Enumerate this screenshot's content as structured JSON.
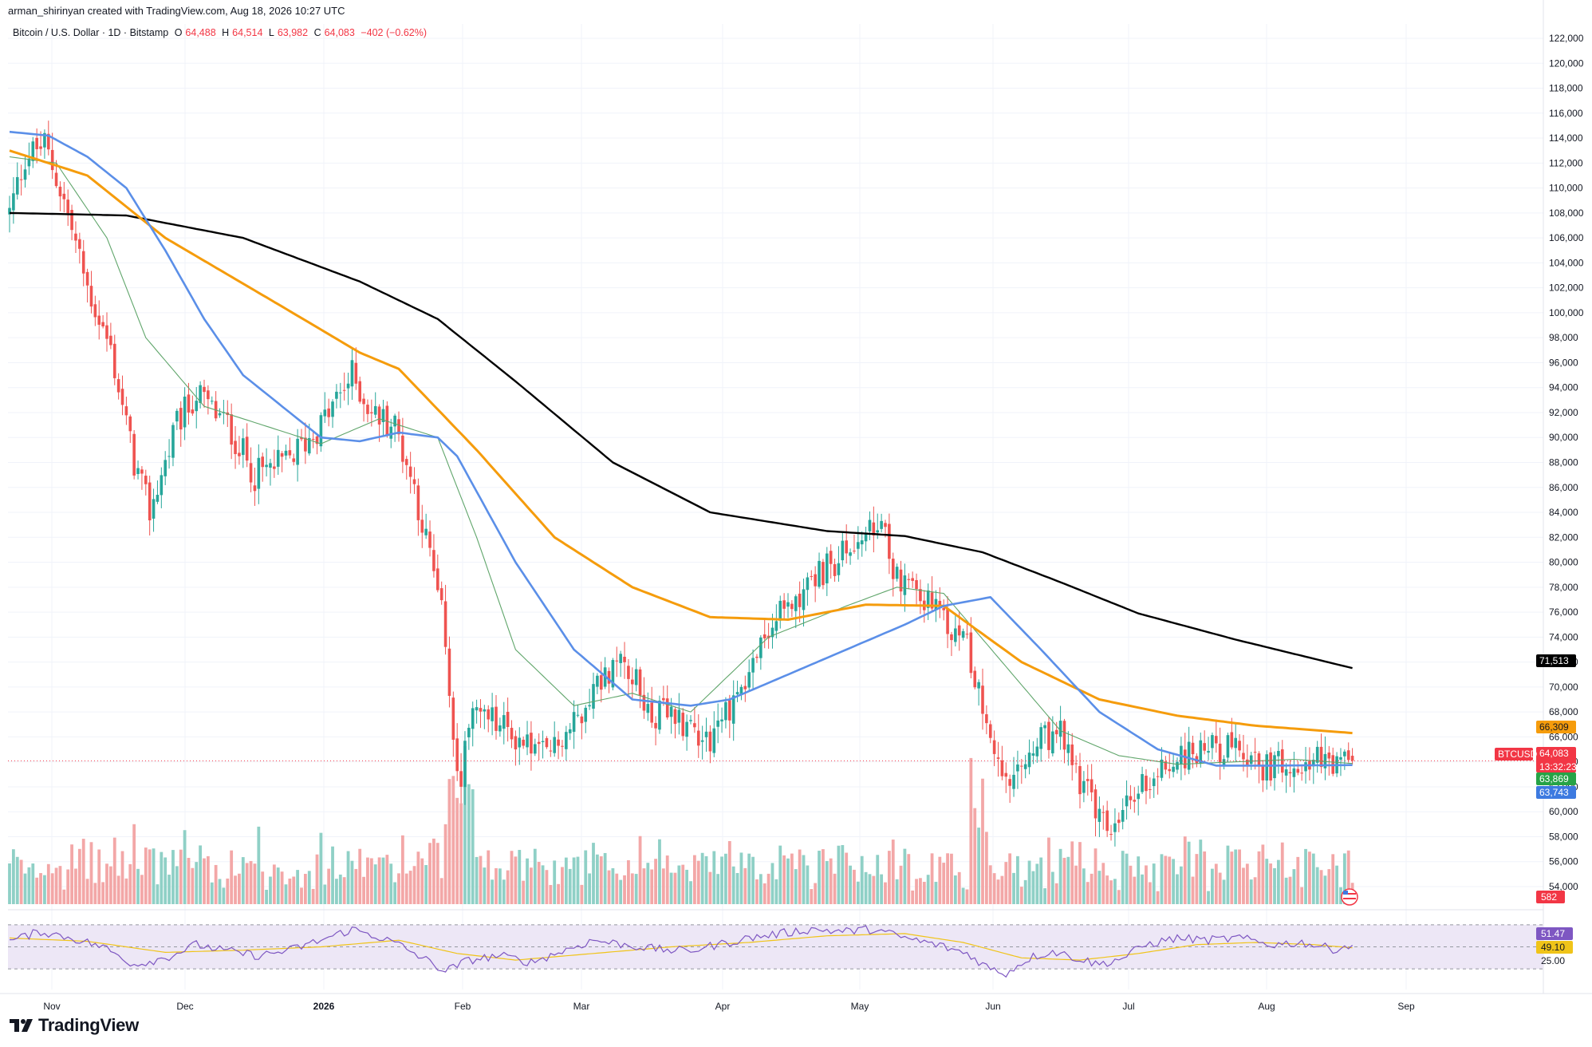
{
  "header": {
    "created_by": "arman_shirinyan created with TradingView.com, Aug 18, 2026 10:27 UTC",
    "symbol": "Bitcoin / U.S. Dollar · 1D · Bitstamp",
    "open_label": "O",
    "open": "64,488",
    "high_label": "H",
    "high": "64,514",
    "low_label": "L",
    "low": "63,982",
    "close_label": "C",
    "close": "64,083",
    "change": "−402 (−0.62%)"
  },
  "branding": {
    "logo_text": "TradingView"
  },
  "colors": {
    "up": "#26a69a",
    "down": "#ef5350",
    "up_volume": "#8fd0c6",
    "down_volume": "#f3a7a7",
    "ma_black": "#000000",
    "ma_orange": "#f59c0c",
    "ma_blue": "#5b8fe8",
    "ma_green": "#5fa56a",
    "rsi_line": "#7e57c2",
    "rsi_ma": "#f0c419",
    "rsi_band": "#ede7f6"
  },
  "chart_data": {
    "type": "candlestick",
    "price_axis": {
      "ticks": [
        "54,000",
        "56,000",
        "58,000",
        "60,000",
        "62,000",
        "64,000",
        "66,000",
        "68,000",
        "70,000",
        "72,000",
        "74,000",
        "76,000",
        "78,000",
        "80,000",
        "82,000",
        "84,000",
        "86,000",
        "88,000",
        "90,000",
        "92,000",
        "94,000",
        "96,000",
        "98,000",
        "100,000",
        "102,000",
        "104,000",
        "106,000",
        "108,000",
        "110,000",
        "112,000",
        "114,000",
        "116,000",
        "118,000",
        "120,000",
        "122,000"
      ],
      "range": [
        53000,
        123000
      ]
    },
    "time_axis": {
      "labels": [
        "Nov",
        "Dec",
        "2026",
        "Feb",
        "Mar",
        "Apr",
        "May",
        "Jun",
        "Jul",
        "Aug",
        "Sep"
      ]
    },
    "price_path": [
      [
        0,
        108000
      ],
      [
        4,
        112500
      ],
      [
        9,
        113500
      ],
      [
        14,
        109000
      ],
      [
        20,
        102000
      ],
      [
        26,
        97000
      ],
      [
        32,
        88000
      ],
      [
        36,
        84000
      ],
      [
        43,
        91000
      ],
      [
        48,
        93500
      ],
      [
        56,
        91000
      ],
      [
        63,
        87000
      ],
      [
        71,
        88000
      ],
      [
        80,
        91000
      ],
      [
        88,
        95000
      ],
      [
        93,
        92000
      ],
      [
        99,
        91000
      ],
      [
        104,
        86000
      ],
      [
        109,
        79000
      ],
      [
        112,
        74000
      ],
      [
        114,
        66000
      ],
      [
        116,
        62500
      ],
      [
        118,
        68000
      ],
      [
        123,
        67500
      ],
      [
        130,
        66000
      ],
      [
        138,
        64500
      ],
      [
        145,
        67000
      ],
      [
        150,
        70000
      ],
      [
        158,
        72500
      ],
      [
        164,
        68000
      ],
      [
        172,
        67500
      ],
      [
        180,
        66000
      ],
      [
        188,
        70000
      ],
      [
        196,
        75000
      ],
      [
        204,
        78000
      ],
      [
        212,
        80000
      ],
      [
        219,
        82000
      ],
      [
        224,
        82500
      ],
      [
        228,
        79000
      ],
      [
        234,
        77500
      ],
      [
        240,
        75000
      ],
      [
        246,
        73500
      ],
      [
        249,
        70000
      ],
      [
        252,
        66000
      ],
      [
        255,
        62000
      ],
      [
        259,
        62500
      ],
      [
        264,
        65500
      ],
      [
        270,
        66000
      ],
      [
        276,
        62000
      ],
      [
        281,
        59000
      ],
      [
        284,
        58500
      ],
      [
        290,
        62000
      ],
      [
        296,
        63500
      ],
      [
        302,
        64500
      ],
      [
        309,
        65500
      ],
      [
        316,
        64500
      ],
      [
        323,
        63500
      ],
      [
        330,
        64500
      ],
      [
        336,
        64000
      ],
      [
        340,
        63600
      ],
      [
        345,
        64083
      ]
    ],
    "ma_black_path": [
      [
        0,
        108000
      ],
      [
        30,
        107800
      ],
      [
        60,
        106000
      ],
      [
        90,
        102500
      ],
      [
        110,
        99500
      ],
      [
        130,
        94500
      ],
      [
        155,
        88000
      ],
      [
        180,
        84000
      ],
      [
        210,
        82500
      ],
      [
        230,
        82100
      ],
      [
        250,
        80800
      ],
      [
        270,
        78400
      ],
      [
        290,
        75900
      ],
      [
        315,
        73800
      ],
      [
        345,
        71513
      ]
    ],
    "ma_orange_path": [
      [
        0,
        113000
      ],
      [
        20,
        111000
      ],
      [
        40,
        106000
      ],
      [
        70,
        100500
      ],
      [
        90,
        96800
      ],
      [
        100,
        95500
      ],
      [
        120,
        89000
      ],
      [
        140,
        82000
      ],
      [
        160,
        78000
      ],
      [
        180,
        75600
      ],
      [
        200,
        75400
      ],
      [
        220,
        76600
      ],
      [
        240,
        76500
      ],
      [
        260,
        72000
      ],
      [
        280,
        69000
      ],
      [
        300,
        67700
      ],
      [
        320,
        66900
      ],
      [
        345,
        66309
      ]
    ],
    "ma_blue_path": [
      [
        0,
        114500
      ],
      [
        10,
        114200
      ],
      [
        20,
        112500
      ],
      [
        30,
        110000
      ],
      [
        40,
        105000
      ],
      [
        50,
        99500
      ],
      [
        60,
        95000
      ],
      [
        70,
        92500
      ],
      [
        80,
        90000
      ],
      [
        90,
        89700
      ],
      [
        100,
        90400
      ],
      [
        110,
        90000
      ],
      [
        115,
        88500
      ],
      [
        130,
        80000
      ],
      [
        145,
        73000
      ],
      [
        160,
        69000
      ],
      [
        175,
        68500
      ],
      [
        185,
        69000
      ],
      [
        200,
        71000
      ],
      [
        215,
        73000
      ],
      [
        230,
        75000
      ],
      [
        240,
        76500
      ],
      [
        252,
        77200
      ],
      [
        265,
        73000
      ],
      [
        280,
        68000
      ],
      [
        295,
        65000
      ],
      [
        310,
        63700
      ],
      [
        325,
        63700
      ],
      [
        345,
        63743
      ]
    ],
    "ma_green_path": [
      [
        0,
        112500
      ],
      [
        12,
        112000
      ],
      [
        25,
        106000
      ],
      [
        35,
        98000
      ],
      [
        50,
        92500
      ],
      [
        65,
        91000
      ],
      [
        80,
        89500
      ],
      [
        95,
        91500
      ],
      [
        110,
        90000
      ],
      [
        120,
        82000
      ],
      [
        130,
        73000
      ],
      [
        145,
        68500
      ],
      [
        160,
        69500
      ],
      [
        175,
        68000
      ],
      [
        195,
        74000
      ],
      [
        215,
        76500
      ],
      [
        228,
        78000
      ],
      [
        240,
        77500
      ],
      [
        255,
        72000
      ],
      [
        270,
        66500
      ],
      [
        285,
        64500
      ],
      [
        300,
        63800
      ],
      [
        315,
        64000
      ],
      [
        330,
        64200
      ],
      [
        345,
        63869
      ]
    ],
    "price_tags": [
      {
        "label": "71,513",
        "value": 71513,
        "color": "#000000",
        "text_color": "#ffffff"
      },
      {
        "label": "66,309",
        "value": 66309,
        "color": "#f59c0c",
        "text_color": "#131722"
      },
      {
        "label": "64,083",
        "value": 64083,
        "color": "#f23645",
        "text_color": "#ffffff"
      },
      {
        "label": "63,869",
        "value": 63869,
        "color": "#26a346",
        "text_color": "#ffffff"
      },
      {
        "label": "63,743",
        "value": 63743,
        "color": "#3d7ae0",
        "text_color": "#ffffff"
      }
    ],
    "symbol_tag": "BTCUSD",
    "countdown": "13:32:23",
    "volume_tag": "582",
    "rsi": {
      "value": "51.47",
      "ma_value": "49.10",
      "lower_level": "25.00",
      "upper": 70,
      "lower": 30,
      "range": [
        20,
        80
      ]
    },
    "rsi_path": [
      [
        0,
        55
      ],
      [
        8,
        64
      ],
      [
        16,
        58
      ],
      [
        24,
        50
      ],
      [
        32,
        34
      ],
      [
        40,
        40
      ],
      [
        48,
        52
      ],
      [
        56,
        46
      ],
      [
        64,
        42
      ],
      [
        72,
        47
      ],
      [
        80,
        56
      ],
      [
        88,
        66
      ],
      [
        94,
        60
      ],
      [
        100,
        52
      ],
      [
        106,
        40
      ],
      [
        112,
        28
      ],
      [
        118,
        38
      ],
      [
        126,
        42
      ],
      [
        134,
        36
      ],
      [
        142,
        46
      ],
      [
        150,
        56
      ],
      [
        158,
        52
      ],
      [
        166,
        48
      ],
      [
        174,
        46
      ],
      [
        182,
        52
      ],
      [
        190,
        58
      ],
      [
        198,
        62
      ],
      [
        206,
        66
      ],
      [
        214,
        64
      ],
      [
        222,
        66
      ],
      [
        230,
        58
      ],
      [
        238,
        52
      ],
      [
        246,
        44
      ],
      [
        252,
        30
      ],
      [
        256,
        26
      ],
      [
        262,
        40
      ],
      [
        268,
        46
      ],
      [
        274,
        40
      ],
      [
        280,
        34
      ],
      [
        286,
        40
      ],
      [
        292,
        52
      ],
      [
        300,
        58
      ],
      [
        308,
        56
      ],
      [
        316,
        58
      ],
      [
        324,
        52
      ],
      [
        332,
        54
      ],
      [
        340,
        48
      ],
      [
        345,
        51.47
      ]
    ],
    "rsi_ma_path": [
      [
        0,
        58
      ],
      [
        20,
        55
      ],
      [
        40,
        45
      ],
      [
        60,
        47
      ],
      [
        80,
        50
      ],
      [
        100,
        56
      ],
      [
        115,
        44
      ],
      [
        130,
        38
      ],
      [
        150,
        44
      ],
      [
        170,
        50
      ],
      [
        190,
        54
      ],
      [
        210,
        60
      ],
      [
        230,
        62
      ],
      [
        245,
        54
      ],
      [
        260,
        40
      ],
      [
        275,
        38
      ],
      [
        290,
        44
      ],
      [
        305,
        52
      ],
      [
        320,
        54
      ],
      [
        335,
        52
      ],
      [
        345,
        49.1
      ]
    ]
  }
}
